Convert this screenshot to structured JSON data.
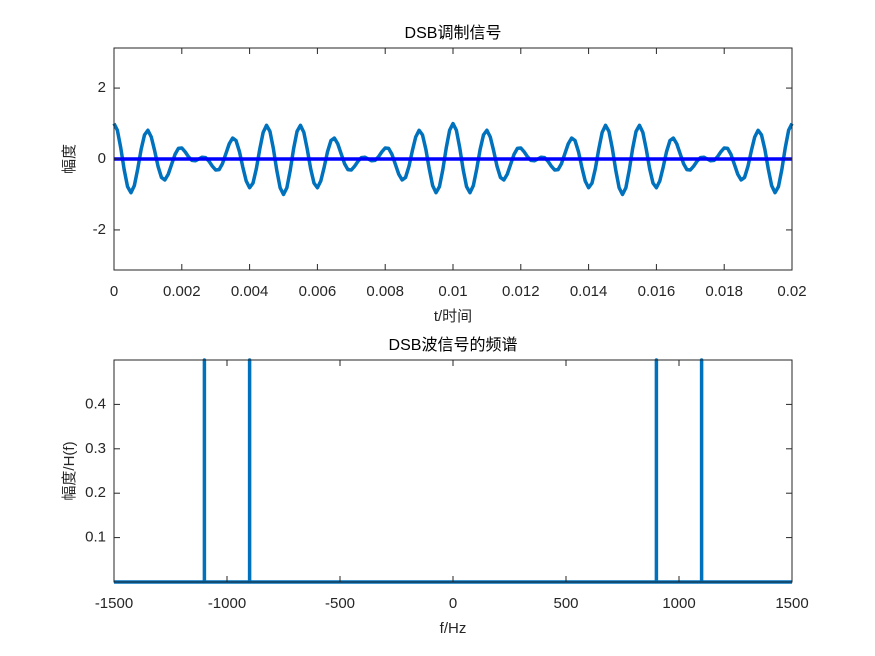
{
  "chart_data": [
    {
      "type": "line",
      "title": "DSB调制信号",
      "xlabel": "t/时间",
      "ylabel": "幅度",
      "xlim": [
        0,
        0.02
      ],
      "ylim": [
        -3.13,
        3.13
      ],
      "xticks": [
        0,
        0.002,
        0.004,
        0.006,
        0.008,
        0.01,
        0.012,
        0.014,
        0.016,
        0.018,
        0.02
      ],
      "yticks": [
        -2,
        0,
        2
      ],
      "series": [
        {
          "color": "#0072BD",
          "x": [
            0,
            0.0001,
            0.0002,
            0.0003,
            0.0004,
            0.0005,
            0.0006,
            0.0007,
            0.0008,
            0.0009,
            0.001,
            0.0011,
            0.0012,
            0.0013,
            0.0014,
            0.0015,
            0.0016,
            0.0017,
            0.0018,
            0.0019,
            0.002,
            0.0021,
            0.0022,
            0.0023,
            0.0024,
            0.0025,
            0.0026,
            0.0027,
            0.0028,
            0.0029,
            0.003,
            0.0031,
            0.0032,
            0.0033,
            0.0034,
            0.0035,
            0.0036,
            0.0037,
            0.0038,
            0.0039,
            0.004,
            0.0041,
            0.0042,
            0.0043,
            0.0044,
            0.0045,
            0.0046,
            0.0047,
            0.0048,
            0.0049,
            0.005,
            0.0051,
            0.0052,
            0.0053,
            0.0054,
            0.0055,
            0.0056,
            0.0057,
            0.0058,
            0.0059,
            0.006,
            0.0061,
            0.0062,
            0.0063,
            0.0064,
            0.0065,
            0.0066,
            0.0067,
            0.0068,
            0.0069,
            0.007,
            0.0071,
            0.0072,
            0.0073,
            0.0074,
            0.0075,
            0.0076,
            0.0077,
            0.0078,
            0.0079,
            0.008,
            0.0081,
            0.0082,
            0.0083,
            0.0084,
            0.0085,
            0.0086,
            0.0087,
            0.0088,
            0.0089,
            0.009,
            0.0091,
            0.0092,
            0.0093,
            0.0094,
            0.0095,
            0.0096,
            0.0097,
            0.0098,
            0.0099,
            0.01,
            0.0101,
            0.0102,
            0.0103,
            0.0104,
            0.0105,
            0.0106,
            0.0107,
            0.0108,
            0.0109,
            0.011,
            0.0111,
            0.0112,
            0.0113,
            0.0114,
            0.0115,
            0.0116,
            0.0117,
            0.0118,
            0.0119,
            0.012,
            0.0121,
            0.0122,
            0.0123,
            0.0124,
            0.0125,
            0.0126,
            0.0127,
            0.0128,
            0.0129,
            0.013,
            0.0131,
            0.0132,
            0.0133,
            0.0134,
            0.0135,
            0.0136,
            0.0137,
            0.0138,
            0.0139,
            0.014,
            0.0141,
            0.0142,
            0.0143,
            0.0144,
            0.0145,
            0.0146,
            0.0147,
            0.0148,
            0.0149,
            0.015,
            0.0151,
            0.0152,
            0.0153,
            0.0154,
            0.0155,
            0.0156,
            0.0157,
            0.0158,
            0.0159,
            0.016,
            0.0161,
            0.0162,
            0.0163,
            0.0164,
            0.0165,
            0.0166,
            0.0167,
            0.0168,
            0.0169,
            0.017,
            0.0171,
            0.0172,
            0.0173,
            0.0174,
            0.0175,
            0.0176,
            0.0177,
            0.0178,
            0.0179,
            0.018,
            0.0181,
            0.0182,
            0.0183,
            0.0184,
            0.0185,
            0.0186,
            0.0187,
            0.0188,
            0.0189,
            0.019,
            0.0191,
            0.0192,
            0.0193,
            0.0194,
            0.0195,
            0.0196,
            0.0197,
            0.0198,
            0.0199,
            0.02
          ],
          "values": [
            1,
            0.81,
            0.31,
            -0.3,
            -0.78,
            -0.95,
            -0.75,
            -0.28,
            0.27,
            0.68,
            0.81,
            0.62,
            0.23,
            -0.21,
            -0.52,
            -0.59,
            -0.43,
            -0.15,
            0.13,
            0.3,
            0.31,
            0.2,
            0.06,
            -0.04,
            -0.05,
            0,
            0.05,
            0.04,
            -0.06,
            -0.2,
            -0.31,
            -0.3,
            -0.13,
            0.15,
            0.43,
            0.59,
            0.52,
            0.21,
            -0.23,
            -0.62,
            -0.81,
            -0.68,
            -0.27,
            0.28,
            0.75,
            0.95,
            0.78,
            0.3,
            -0.31,
            -0.81,
            -1,
            -0.81,
            -0.31,
            0.3,
            0.78,
            0.95,
            0.75,
            0.28,
            -0.27,
            -0.68,
            -0.81,
            -0.62,
            -0.23,
            0.21,
            0.52,
            0.59,
            0.43,
            0.15,
            -0.13,
            -0.3,
            -0.31,
            -0.2,
            -0.06,
            0.04,
            0.05,
            0,
            -0.05,
            -0.04,
            0.06,
            0.2,
            0.31,
            0.3,
            0.13,
            -0.15,
            -0.43,
            -0.59,
            -0.52,
            -0.21,
            0.23,
            0.62,
            0.81,
            0.68,
            0.27,
            -0.28,
            -0.75,
            -0.95,
            -0.78,
            -0.3,
            0.31,
            0.81,
            1,
            0.81,
            0.31,
            -0.3,
            -0.78,
            -0.95,
            -0.75,
            -0.28,
            0.27,
            0.68,
            0.81,
            0.62,
            0.23,
            -0.21,
            -0.52,
            -0.59,
            -0.43,
            -0.15,
            0.13,
            0.3,
            0.31,
            0.2,
            0.06,
            -0.04,
            -0.05,
            0,
            0.05,
            0.04,
            -0.06,
            -0.2,
            -0.31,
            -0.3,
            -0.13,
            0.15,
            0.43,
            0.59,
            0.52,
            0.21,
            -0.23,
            -0.62,
            -0.81,
            -0.68,
            -0.27,
            0.28,
            0.75,
            0.95,
            0.78,
            0.3,
            -0.31,
            -0.81,
            -1,
            -0.81,
            -0.31,
            0.3,
            0.78,
            0.95,
            0.75,
            0.28,
            -0.27,
            -0.68,
            -0.81,
            -0.62,
            -0.23,
            0.21,
            0.52,
            0.59,
            0.43,
            0.15,
            -0.13,
            -0.3,
            -0.31,
            -0.2,
            -0.06,
            0.04,
            0.05,
            0,
            -0.05,
            -0.04,
            0.06,
            0.2,
            0.31,
            0.3,
            0.13,
            -0.15,
            -0.43,
            -0.59,
            -0.52,
            -0.21,
            0.23,
            0.62,
            0.81,
            0.68,
            0.27,
            -0.28,
            -0.75,
            -0.95,
            -0.78,
            -0.3,
            0.31,
            0.81,
            1
          ]
        },
        {
          "color": "#0000FF",
          "x": [
            0,
            0.02
          ],
          "values": [
            0,
            0
          ]
        }
      ]
    },
    {
      "type": "line",
      "title": "DSB波信号的频谱",
      "xlabel": "f/Hz",
      "ylabel": "幅度/H(f)",
      "xlim": [
        -1500,
        1500
      ],
      "ylim": [
        0,
        0.5
      ],
      "xticks": [
        -1500,
        -1000,
        -500,
        0,
        500,
        1000,
        1500
      ],
      "yticks": [
        0.1,
        0.2,
        0.3,
        0.4
      ],
      "series": [
        {
          "color": "#0072BD",
          "x": [
            -1500,
            -1100,
            -1100,
            -1100,
            -900,
            -900,
            -900,
            900,
            900,
            900,
            1100,
            1100,
            1100,
            1500
          ],
          "values": [
            0,
            0,
            0.5,
            0,
            0,
            0.5,
            0,
            0,
            0.5,
            0,
            0,
            0.5,
            0,
            0
          ]
        }
      ]
    }
  ]
}
